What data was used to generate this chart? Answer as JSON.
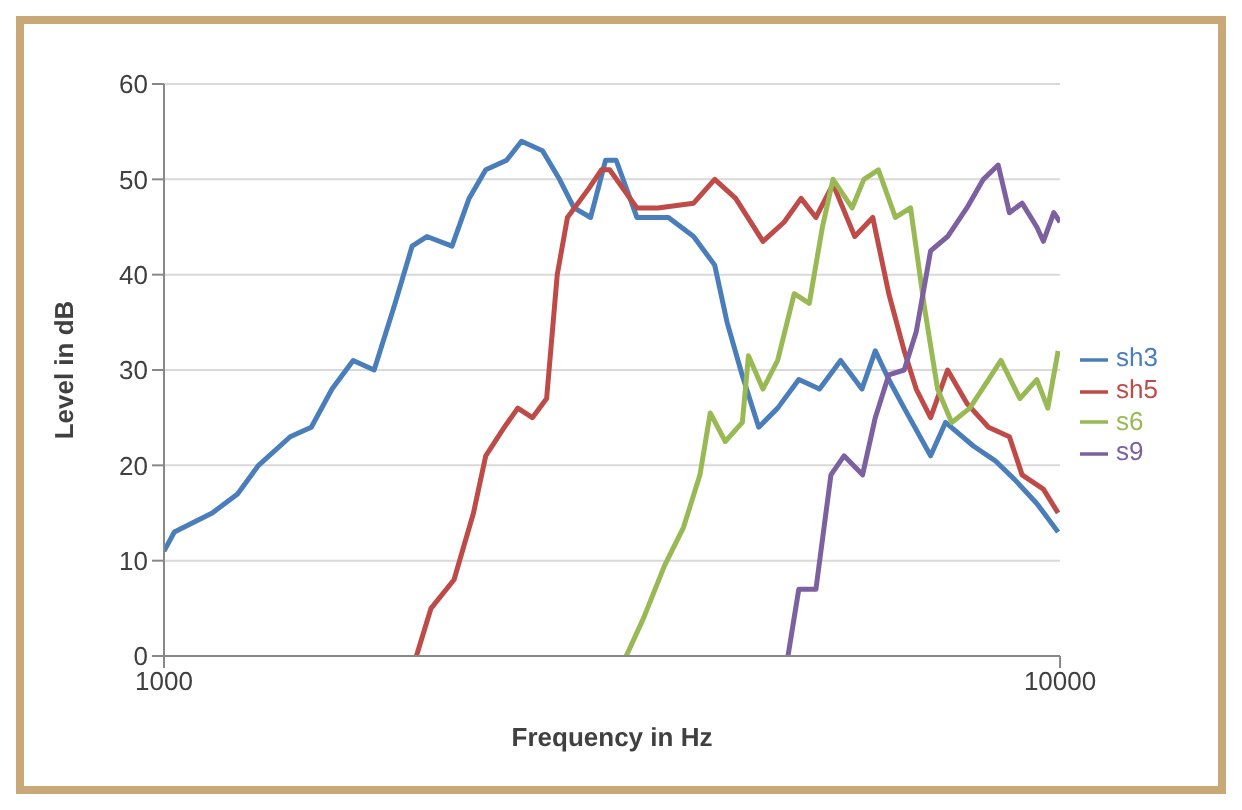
{
  "chart_data": {
    "type": "line",
    "xlabel": "Frequency in Hz",
    "ylabel": "Level in dB",
    "log": "x",
    "xlim": [
      1000,
      10000
    ],
    "xticks": [
      1000,
      10000
    ],
    "ylim": [
      0,
      60
    ],
    "yticks": [
      0,
      10,
      20,
      30,
      40,
      50,
      60
    ],
    "grid": "y",
    "legend": "right",
    "marker": "none",
    "line_style": "solid",
    "series": [
      {
        "name": "sh3",
        "color": "#4a7ebb",
        "x": [
          1000,
          1027,
          1132,
          1208,
          1275,
          1383,
          1460,
          1540,
          1626,
          1716,
          1811,
          1892,
          1965,
          2096,
          2190,
          2286,
          2412,
          2506,
          2645,
          2763,
          2868,
          2993,
          3110,
          3196,
          3371,
          3656,
          3900,
          4117,
          4250,
          4417,
          4610,
          4840,
          5110,
          5390,
          5690,
          6010,
          6220,
          6440,
          6700,
          7170,
          7450,
          8010,
          8460,
          8900,
          9420,
          9950
        ],
        "values": [
          11,
          13,
          15,
          17,
          20,
          23,
          24,
          28,
          31,
          30,
          37,
          43,
          44,
          43,
          48,
          51,
          52,
          54,
          53,
          50,
          47,
          46,
          52,
          52,
          46,
          46,
          44,
          41,
          35,
          29.5,
          24,
          26,
          29,
          28,
          31,
          28,
          32,
          29,
          26,
          21,
          24.5,
          22,
          20.5,
          18.5,
          16,
          13
        ]
      },
      {
        "name": "sh5",
        "color": "#be4b48",
        "x": [
          1913,
          1986,
          2107,
          2215,
          2286,
          2398,
          2482,
          2577,
          2673,
          2747,
          2820,
          2977,
          3077,
          3143,
          3371,
          3557,
          3900,
          4117,
          4345,
          4660,
          4920,
          5140,
          5340,
          5580,
          5900,
          6180,
          6440,
          6700,
          6910,
          7170,
          7490,
          7870,
          8320,
          8780,
          9070,
          9580,
          9950
        ],
        "values": [
          0,
          5,
          8,
          15,
          21,
          24,
          26,
          25,
          27,
          40,
          46,
          49,
          51,
          51,
          47,
          47,
          47.5,
          50,
          48,
          43.5,
          45.5,
          48,
          46,
          49.5,
          44,
          46,
          38,
          32,
          28,
          25,
          30,
          26.5,
          24,
          23,
          19,
          17.5,
          15
        ]
      },
      {
        "name": "s6",
        "color": "#98b954",
        "x": [
          3280,
          3430,
          3620,
          3800,
          3964,
          4070,
          4230,
          4420,
          4490,
          4660,
          4840,
          5050,
          5250,
          5430,
          5580,
          5860,
          6040,
          6270,
          6550,
          6810,
          7060,
          7300,
          7570,
          7930,
          8320,
          8590,
          9020,
          9420,
          9690,
          9950
        ],
        "values": [
          0,
          4,
          9.5,
          13.5,
          19,
          25.5,
          22.5,
          24.5,
          31.5,
          28,
          31,
          38,
          37,
          45,
          50,
          47,
          50,
          51,
          46,
          47,
          36.5,
          28,
          24.5,
          26,
          29,
          31,
          27,
          29,
          26,
          32
        ]
      },
      {
        "name": "s9",
        "color": "#7d60a0",
        "x": [
          4970,
          5110,
          5340,
          5550,
          5740,
          6020,
          6220,
          6440,
          6700,
          6910,
          7170,
          7490,
          7870,
          8210,
          8530,
          8780,
          9070,
          9420,
          9580,
          9840,
          10000
        ],
        "values": [
          0,
          7,
          7,
          19,
          21,
          19,
          25,
          29.5,
          30,
          34,
          42.5,
          44,
          47,
          50,
          51.5,
          46.5,
          47.5,
          45,
          43.5,
          46.5,
          45.5
        ]
      }
    ]
  }
}
